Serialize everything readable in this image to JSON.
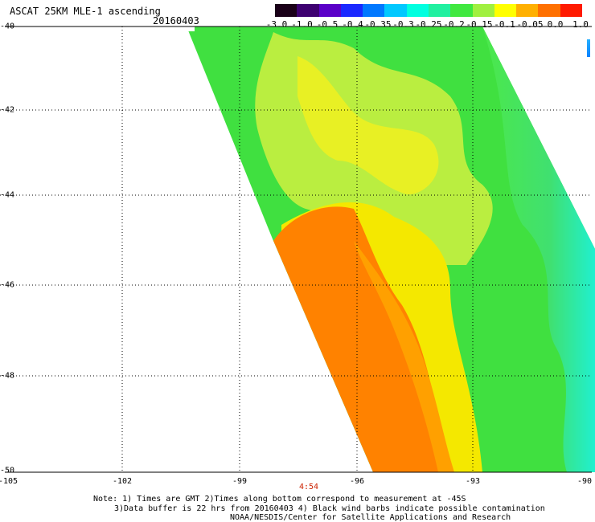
{
  "header": {
    "title": "ASCAT 25KM MLE-1 ascending",
    "date": "20160403"
  },
  "colorbar": {
    "labels": [
      "-3.0",
      "-1.0",
      "-0.5",
      "-0.4",
      "-0.35",
      "-0.3",
      "-0.25",
      "-0.2",
      "-0.15",
      "-0.1",
      "-0.05",
      "0.0",
      "1.0"
    ],
    "colors": [
      "#1a0018",
      "#3d0070",
      "#5a00c8",
      "#1a28ff",
      "#0078ff",
      "#00c8ff",
      "#00ffe0",
      "#20f0a0",
      "#40e840",
      "#a0f040",
      "#ffff00",
      "#ffb000",
      "#ff7000",
      "#ff1a00"
    ]
  },
  "axes": {
    "y_labels": [
      "-40",
      "-42",
      "-44",
      "-46",
      "-48",
      "-50"
    ],
    "x_labels": [
      "-105",
      "-102",
      "-99",
      "-96",
      "-93",
      "-90"
    ],
    "time_label": "4:54"
  },
  "map": {
    "type": "scalar swath map",
    "lat_range": [
      -50,
      -40
    ],
    "lon_range": [
      -105,
      -90
    ],
    "regions": [
      {
        "area": "west-central and southwest of swath",
        "color": "orange",
        "value_range": "0.0 to 1.0"
      },
      {
        "area": "central swath",
        "color": "yellow",
        "value_range": "-0.05 to 0.0"
      },
      {
        "area": "north and east swath",
        "color": "green",
        "value_range": "-0.2 to -0.1"
      },
      {
        "area": "eastern edge near -90",
        "color": "cyan",
        "value_range": "-0.3 to -0.25"
      }
    ]
  },
  "notes": {
    "line1": "Note: 1) Times are GMT 2)Times along bottom correspond to measurement at -45S",
    "line2": "3)Data buffer is 22 hrs from 20160403 4) Black wind barbs indicate possible contamination",
    "credit": "NOAA/NESDIS/Center for Satellite Applications and Research"
  }
}
